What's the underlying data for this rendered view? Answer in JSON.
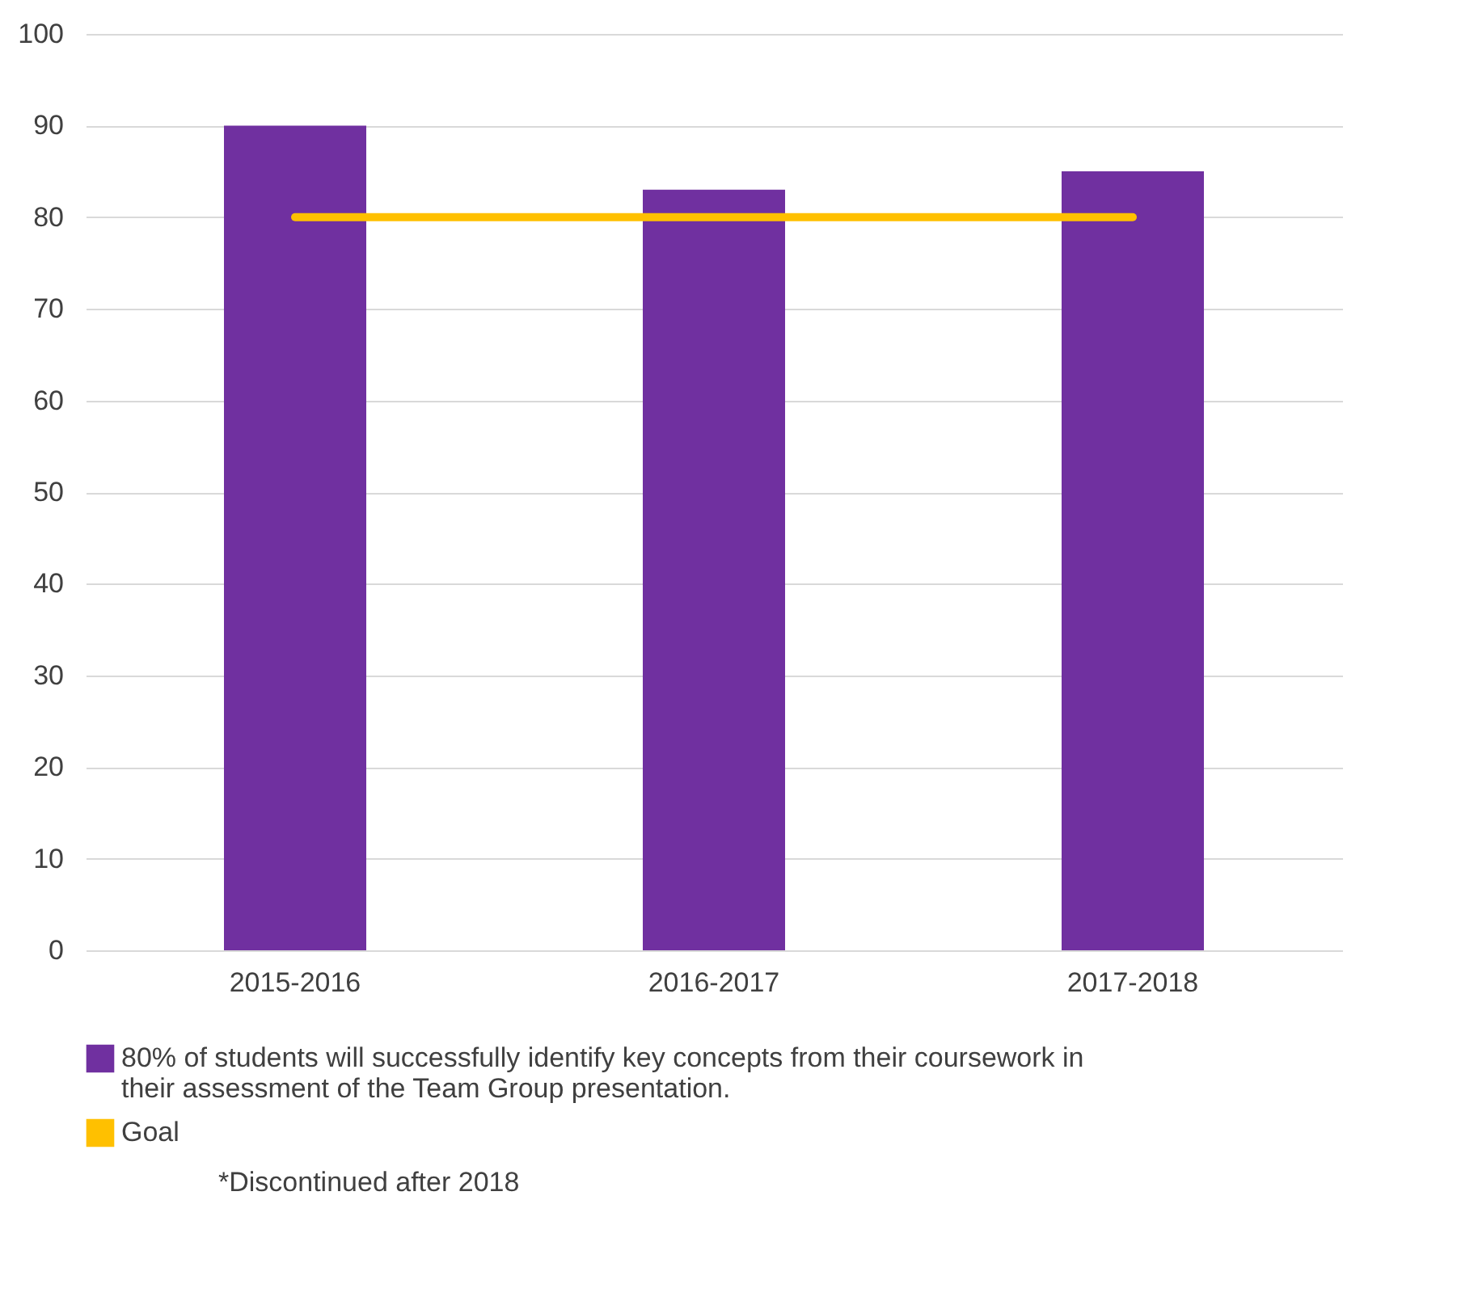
{
  "chart_data": {
    "type": "bar",
    "categories": [
      "2015-2016",
      "2016-2017",
      "2017-2018"
    ],
    "series": [
      {
        "name": "80% of students will successfully identify key concepts from their coursework in their assessment of the Team Group presentation.",
        "color": "#7030a0",
        "values": [
          90,
          83,
          85
        ]
      },
      {
        "name": "Goal",
        "type": "line",
        "color": "#ffc000",
        "values": [
          80,
          80,
          80
        ]
      }
    ],
    "ylim": [
      0,
      100
    ],
    "yticks": [
      0,
      10,
      20,
      30,
      40,
      50,
      60,
      70,
      80,
      90,
      100
    ],
    "grid": "y",
    "legend": "bottom",
    "annotations": [
      "*Discontinued after 2018"
    ]
  }
}
